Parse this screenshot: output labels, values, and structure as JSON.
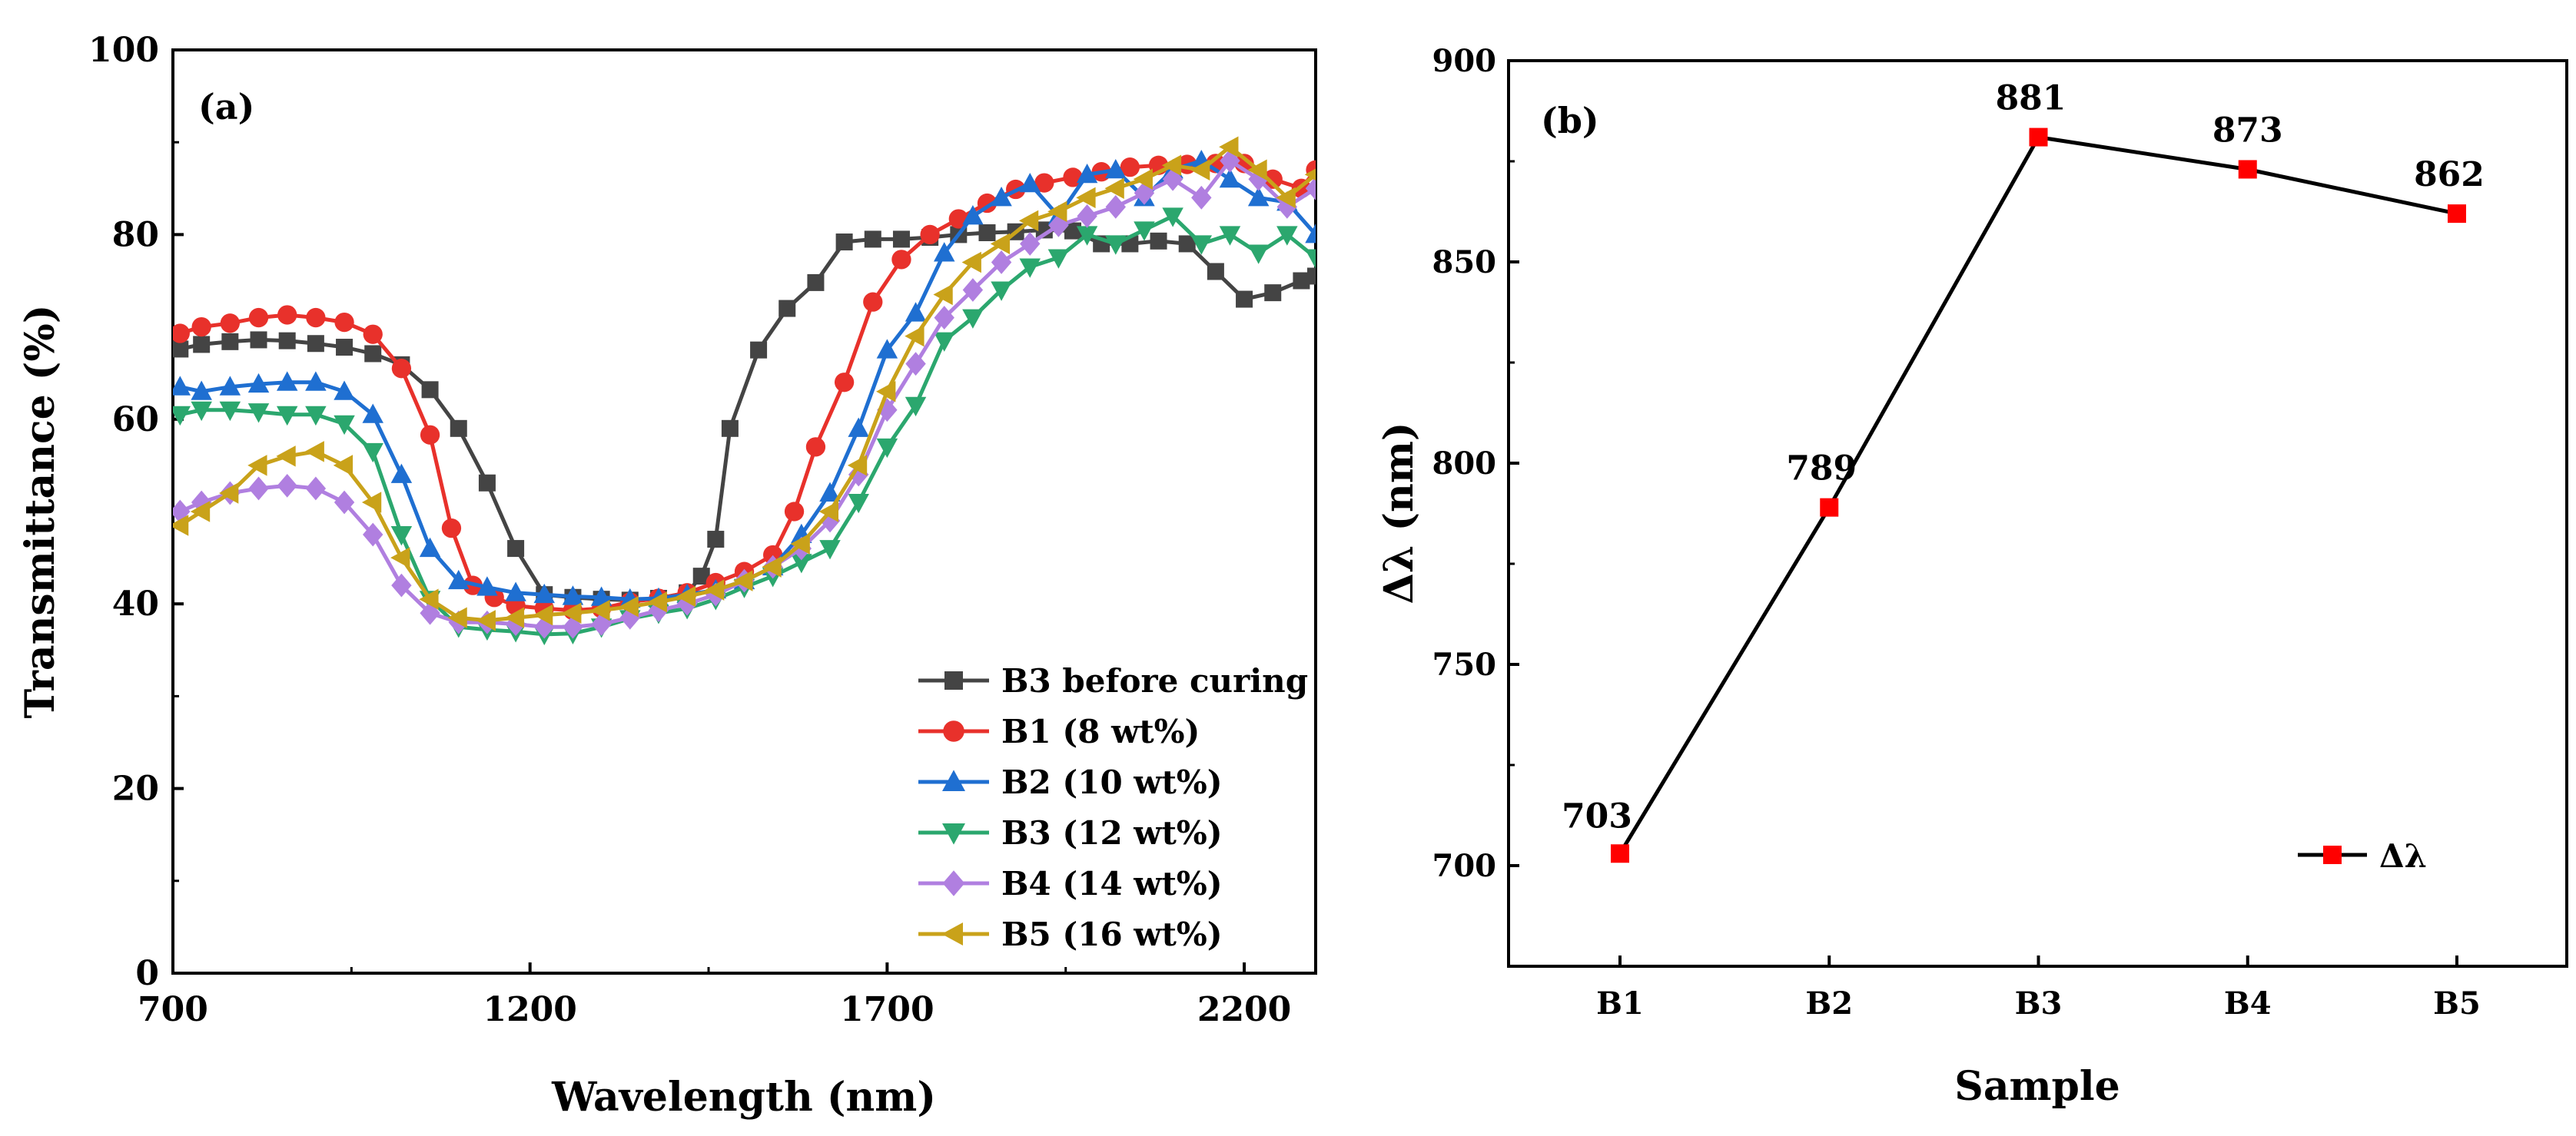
{
  "chart_data": [
    {
      "type": "line",
      "panel": "(a)",
      "xlabel": "Wavelength (nm)",
      "ylabel": "Transmittance (%)",
      "xlim": [
        700,
        2300
      ],
      "ylim": [
        0,
        100
      ],
      "xticks": [
        "700",
        "1200",
        "1700",
        "2200"
      ],
      "yticks": [
        "0",
        "20",
        "40",
        "60",
        "80",
        "100"
      ],
      "legend_position": "bottom-right",
      "series": [
        {
          "name": "B3 before curing",
          "color": "#444444",
          "marker": "square",
          "x": [
            710,
            740,
            780,
            820,
            860,
            900,
            940,
            980,
            1020,
            1060,
            1100,
            1140,
            1180,
            1220,
            1260,
            1300,
            1340,
            1380,
            1420,
            1440,
            1460,
            1480,
            1520,
            1560,
            1600,
            1640,
            1680,
            1720,
            1760,
            1800,
            1840,
            1880,
            1920,
            1960,
            2000,
            2040,
            2080,
            2120,
            2160,
            2200,
            2240,
            2280,
            2300
          ],
          "y": [
            67.6,
            68.1,
            68.4,
            68.6,
            68.5,
            68.2,
            67.8,
            67.1,
            65.9,
            63.2,
            59.0,
            53.1,
            46.0,
            41.0,
            40.7,
            40.5,
            40.4,
            40.6,
            41.2,
            43.0,
            47.0,
            59.0,
            67.5,
            72.0,
            74.8,
            79.2,
            79.5,
            79.5,
            79.7,
            80.0,
            80.2,
            80.3,
            80.5,
            80.4,
            79.0,
            79.0,
            79.3,
            79.0,
            76.0,
            73.0,
            73.7,
            75.0,
            75.5
          ]
        },
        {
          "name": "B1 (8 wt%)",
          "color": "#E8312B",
          "marker": "circle",
          "x": [
            710,
            740,
            780,
            820,
            860,
            900,
            940,
            980,
            1020,
            1060,
            1090,
            1120,
            1150,
            1180,
            1220,
            1260,
            1300,
            1340,
            1380,
            1420,
            1460,
            1500,
            1540,
            1570,
            1600,
            1640,
            1680,
            1720,
            1760,
            1800,
            1840,
            1880,
            1920,
            1960,
            2000,
            2040,
            2080,
            2120,
            2160,
            2200,
            2240,
            2280,
            2300
          ],
          "y": [
            69.3,
            70.0,
            70.4,
            71.0,
            71.3,
            71.0,
            70.5,
            69.2,
            65.5,
            58.3,
            48.2,
            42.0,
            40.7,
            39.8,
            39.5,
            39.3,
            39.5,
            40.2,
            40.6,
            41.2,
            42.3,
            43.5,
            45.3,
            50.0,
            57.0,
            64.0,
            72.7,
            77.3,
            80.0,
            81.7,
            83.4,
            84.9,
            85.6,
            86.2,
            86.8,
            87.3,
            87.5,
            87.6,
            87.7,
            87.7,
            86.0,
            85.0,
            87.0
          ]
        },
        {
          "name": "B2 (10 wt%)",
          "color": "#1F6FD1",
          "marker": "triangle-up",
          "x": [
            710,
            740,
            780,
            820,
            860,
            900,
            940,
            980,
            1020,
            1060,
            1100,
            1140,
            1180,
            1220,
            1260,
            1300,
            1340,
            1380,
            1420,
            1460,
            1500,
            1540,
            1580,
            1620,
            1660,
            1700,
            1740,
            1780,
            1820,
            1860,
            1900,
            1940,
            1980,
            2020,
            2060,
            2100,
            2140,
            2180,
            2220,
            2260,
            2300
          ],
          "y": [
            63.5,
            63.0,
            63.5,
            63.8,
            64.0,
            64.0,
            63.0,
            60.5,
            54.0,
            46.0,
            42.5,
            41.8,
            41.2,
            41.0,
            40.8,
            40.7,
            40.5,
            40.6,
            41.0,
            41.5,
            42.5,
            44.0,
            47.5,
            52.0,
            59.0,
            67.5,
            71.5,
            78.0,
            82.0,
            84.0,
            85.5,
            82.0,
            86.5,
            87.0,
            84.0,
            87.0,
            88.0,
            86.0,
            84.0,
            83.5,
            80.0
          ]
        },
        {
          "name": "B3 (12 wt%)",
          "color": "#2BA76E",
          "marker": "triangle-down",
          "x": [
            710,
            740,
            780,
            820,
            860,
            900,
            940,
            980,
            1020,
            1060,
            1100,
            1140,
            1180,
            1220,
            1260,
            1300,
            1340,
            1380,
            1420,
            1460,
            1500,
            1540,
            1580,
            1620,
            1660,
            1700,
            1740,
            1780,
            1820,
            1860,
            1900,
            1940,
            1980,
            2020,
            2060,
            2100,
            2140,
            2180,
            2220,
            2260,
            2300
          ],
          "y": [
            60.5,
            61.0,
            61.0,
            60.8,
            60.5,
            60.5,
            59.5,
            56.5,
            47.5,
            40.5,
            37.5,
            37.2,
            37.0,
            36.7,
            36.8,
            37.5,
            38.4,
            39.0,
            39.5,
            40.5,
            41.8,
            43.0,
            44.5,
            46.0,
            51.0,
            57.0,
            61.5,
            68.5,
            71.0,
            74.0,
            76.5,
            77.5,
            80.0,
            79.0,
            80.5,
            82.0,
            79.0,
            80.0,
            78.0,
            80.0,
            77.5
          ]
        },
        {
          "name": "B4 (14 wt%)",
          "color": "#B07FE0",
          "marker": "diamond",
          "x": [
            710,
            740,
            780,
            820,
            860,
            900,
            940,
            980,
            1020,
            1060,
            1100,
            1140,
            1180,
            1220,
            1260,
            1300,
            1340,
            1380,
            1420,
            1460,
            1500,
            1540,
            1580,
            1620,
            1660,
            1700,
            1740,
            1780,
            1820,
            1860,
            1900,
            1940,
            1980,
            2020,
            2060,
            2100,
            2140,
            2180,
            2220,
            2260,
            2300
          ],
          "y": [
            50.0,
            51.0,
            52.0,
            52.5,
            52.8,
            52.5,
            51.0,
            47.5,
            42.0,
            39.0,
            38.0,
            38.0,
            37.8,
            37.5,
            37.5,
            37.8,
            38.5,
            39.3,
            40.0,
            41.0,
            42.5,
            44.0,
            46.0,
            49.0,
            54.0,
            61.0,
            66.0,
            71.0,
            74.0,
            77.0,
            79.0,
            81.0,
            82.0,
            83.0,
            84.5,
            86.0,
            84.0,
            88.0,
            86.0,
            83.0,
            85.0
          ]
        },
        {
          "name": "B5 (16 wt%)",
          "color": "#C9A21A",
          "marker": "triangle-left",
          "x": [
            710,
            740,
            780,
            820,
            860,
            900,
            940,
            980,
            1020,
            1060,
            1100,
            1140,
            1180,
            1220,
            1260,
            1300,
            1340,
            1380,
            1420,
            1460,
            1500,
            1540,
            1580,
            1620,
            1660,
            1700,
            1740,
            1780,
            1820,
            1860,
            1900,
            1940,
            1980,
            2020,
            2060,
            2100,
            2140,
            2180,
            2220,
            2260,
            2300
          ],
          "y": [
            48.5,
            50.0,
            52.0,
            55.0,
            56.0,
            56.5,
            55.0,
            51.0,
            45.0,
            40.5,
            38.5,
            38.2,
            38.5,
            38.8,
            39.0,
            39.3,
            39.7,
            40.2,
            40.8,
            41.5,
            42.5,
            44.0,
            46.5,
            50.0,
            55.0,
            63.0,
            69.0,
            73.5,
            77.0,
            79.0,
            81.5,
            82.5,
            84.0,
            85.0,
            86.0,
            87.5,
            87.0,
            89.5,
            87.0,
            84.0,
            86.5
          ]
        }
      ]
    },
    {
      "type": "line",
      "panel": "(b)",
      "xlabel": "Sample",
      "ylabel": "Δλ (nm)",
      "categories": [
        "B1",
        "B2",
        "B3",
        "B4",
        "B5"
      ],
      "values": [
        703,
        789,
        881,
        873,
        862
      ],
      "value_labels": [
        "703",
        "789",
        "881",
        "873",
        "862"
      ],
      "ylim": [
        675,
        900
      ],
      "yticks": [
        "700",
        "750",
        "800",
        "850",
        "900"
      ],
      "legend": [
        {
          "name": "Δλ",
          "line_color": "#000000",
          "marker_color": "#FF0000"
        }
      ],
      "legend_position": "bottom-right"
    }
  ]
}
